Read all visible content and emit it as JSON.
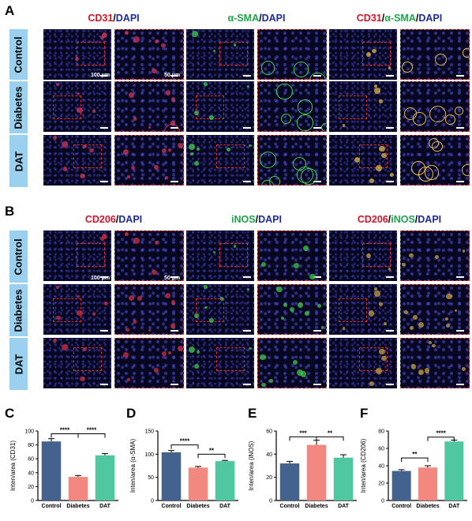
{
  "panels": {
    "A": "A",
    "B": "B",
    "C": "C",
    "D": "D",
    "E": "E",
    "F": "F"
  },
  "panelA": {
    "titles": [
      {
        "p1": "CD31",
        "p2": "/",
        "p3": "DAPI"
      },
      {
        "p1": "α-SMA",
        "p2": "/",
        "p3": "DAPI"
      },
      {
        "p1": "CD31",
        "p2": "/",
        "p3": "α-SMA",
        "p4": "/",
        "p5": "DAPI"
      }
    ],
    "rows": [
      "Control",
      "Diabetes",
      "DAT"
    ],
    "scale_big": "100 μm",
    "scale_small": "50 μm"
  },
  "panelB": {
    "titles": [
      {
        "p1": "CD206",
        "p2": "/",
        "p3": "DAPI"
      },
      {
        "p1": "iNOS",
        "p2": "/",
        "p3": "DAPI"
      },
      {
        "p1": "CD206",
        "p2": "/",
        "p3": "iNOS",
        "p4": "/",
        "p5": "DAPI"
      }
    ],
    "rows": [
      "Control",
      "Diabetes",
      "DAT"
    ],
    "scale_big": "100 μm",
    "scale_small": "50 μm"
  },
  "colors": {
    "control": "#44628e",
    "diabetes": "#f28880",
    "dat": "#4fc7a1"
  },
  "chart_data": [
    {
      "type": "bar",
      "panel": "C",
      "ylabel": "Inten/area (CD31)",
      "categories": [
        "Control",
        "Diabetes",
        "DAT"
      ],
      "values": [
        85,
        34,
        65
      ],
      "errors": [
        4,
        2,
        2.5
      ],
      "ylim": [
        0,
        100
      ],
      "yticks": [
        0,
        20,
        40,
        60,
        80,
        100
      ],
      "sig": [
        {
          "from": 0,
          "to": 1,
          "label": "****",
          "level": 96
        },
        {
          "from": 1,
          "to": 2,
          "label": "****",
          "level": 96
        }
      ]
    },
    {
      "type": "bar",
      "panel": "D",
      "ylabel": "Inten/area (α-SMA)",
      "categories": [
        "Control",
        "Diabetes",
        "DAT"
      ],
      "values": [
        104,
        71,
        85
      ],
      "errors": [
        4,
        2.5,
        1.5
      ],
      "ylim": [
        0,
        150
      ],
      "yticks": [
        0,
        50,
        100,
        150
      ],
      "sig": [
        {
          "from": 0,
          "to": 1,
          "label": "****",
          "level": 120
        },
        {
          "from": 1,
          "to": 2,
          "label": "**",
          "level": 100
        }
      ]
    },
    {
      "type": "bar",
      "panel": "E",
      "ylabel": "Inten/area (iNOS)",
      "categories": [
        "Control",
        "Diabetes",
        "DAT"
      ],
      "values": [
        32,
        48,
        37
      ],
      "errors": [
        1.8,
        4,
        2.5
      ],
      "ylim": [
        0,
        60
      ],
      "yticks": [
        0,
        20,
        40,
        60
      ],
      "sig": [
        {
          "from": 0,
          "to": 1,
          "label": "***",
          "level": 55
        },
        {
          "from": 1,
          "to": 2,
          "label": "**",
          "level": 55
        }
      ]
    },
    {
      "type": "bar",
      "panel": "F",
      "ylabel": "Inten/area (CD206)",
      "categories": [
        "Control",
        "Diabetes",
        "DAT"
      ],
      "values": [
        34,
        38,
        68
      ],
      "errors": [
        1.5,
        2,
        1.5
      ],
      "ylim": [
        0,
        80
      ],
      "yticks": [
        0,
        20,
        40,
        60,
        80
      ],
      "sig": [
        {
          "from": 0,
          "to": 1,
          "label": "**",
          "level": 49
        },
        {
          "from": 1,
          "to": 2,
          "label": "****",
          "level": 73
        }
      ]
    }
  ]
}
